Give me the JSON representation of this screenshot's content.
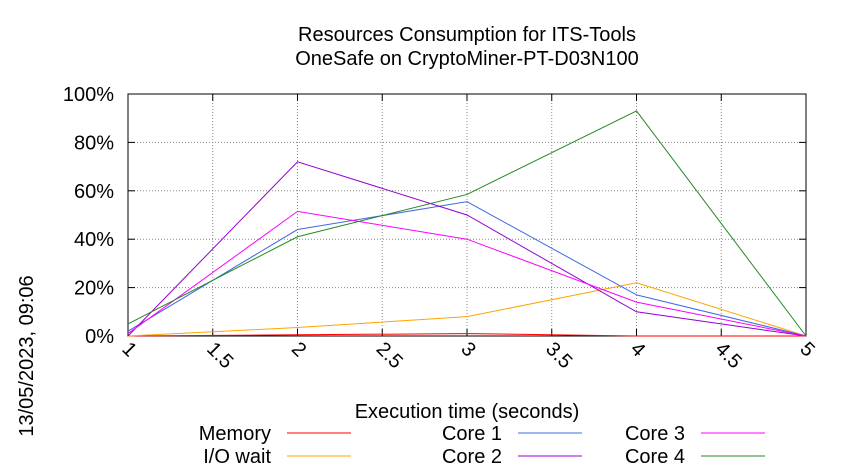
{
  "chart_data": {
    "type": "line",
    "title_lines": [
      "Resources Consumption for ITS-Tools",
      "OneSafe on CryptoMiner-PT-D03N100"
    ],
    "xlabel": "Execution time (seconds)",
    "ylabel": "",
    "side_label": "13/05/2023, 09:06",
    "xlim": [
      1,
      5
    ],
    "ylim": [
      0,
      100
    ],
    "x_ticks": [
      "1",
      "1.5",
      "2",
      "2.5",
      "3",
      "3.5",
      "4",
      "4.5",
      "5"
    ],
    "y_ticks": [
      "0%",
      "20%",
      "40%",
      "60%",
      "80%",
      "100%"
    ],
    "grid": true,
    "legend_position": "bottom",
    "x": [
      1,
      2,
      3,
      4,
      5
    ],
    "series": [
      {
        "name": "Memory",
        "color": "#ff0000",
        "values": [
          0,
          0.5,
          1,
          0,
          0
        ]
      },
      {
        "name": "I/O wait",
        "color": "#ffa500",
        "values": [
          0,
          3.5,
          8,
          22,
          0
        ]
      },
      {
        "name": "Core 1",
        "color": "#4169e1",
        "values": [
          2,
          44,
          55.5,
          17,
          0
        ]
      },
      {
        "name": "Core 2",
        "color": "#9400d3",
        "values": [
          0,
          72,
          50,
          10,
          0
        ]
      },
      {
        "name": "Core 3",
        "color": "#ff00ff",
        "values": [
          1,
          51.5,
          40,
          14,
          0
        ]
      },
      {
        "name": "Core 4",
        "color": "#228b22",
        "values": [
          5,
          41,
          58.5,
          93,
          0
        ]
      }
    ]
  }
}
